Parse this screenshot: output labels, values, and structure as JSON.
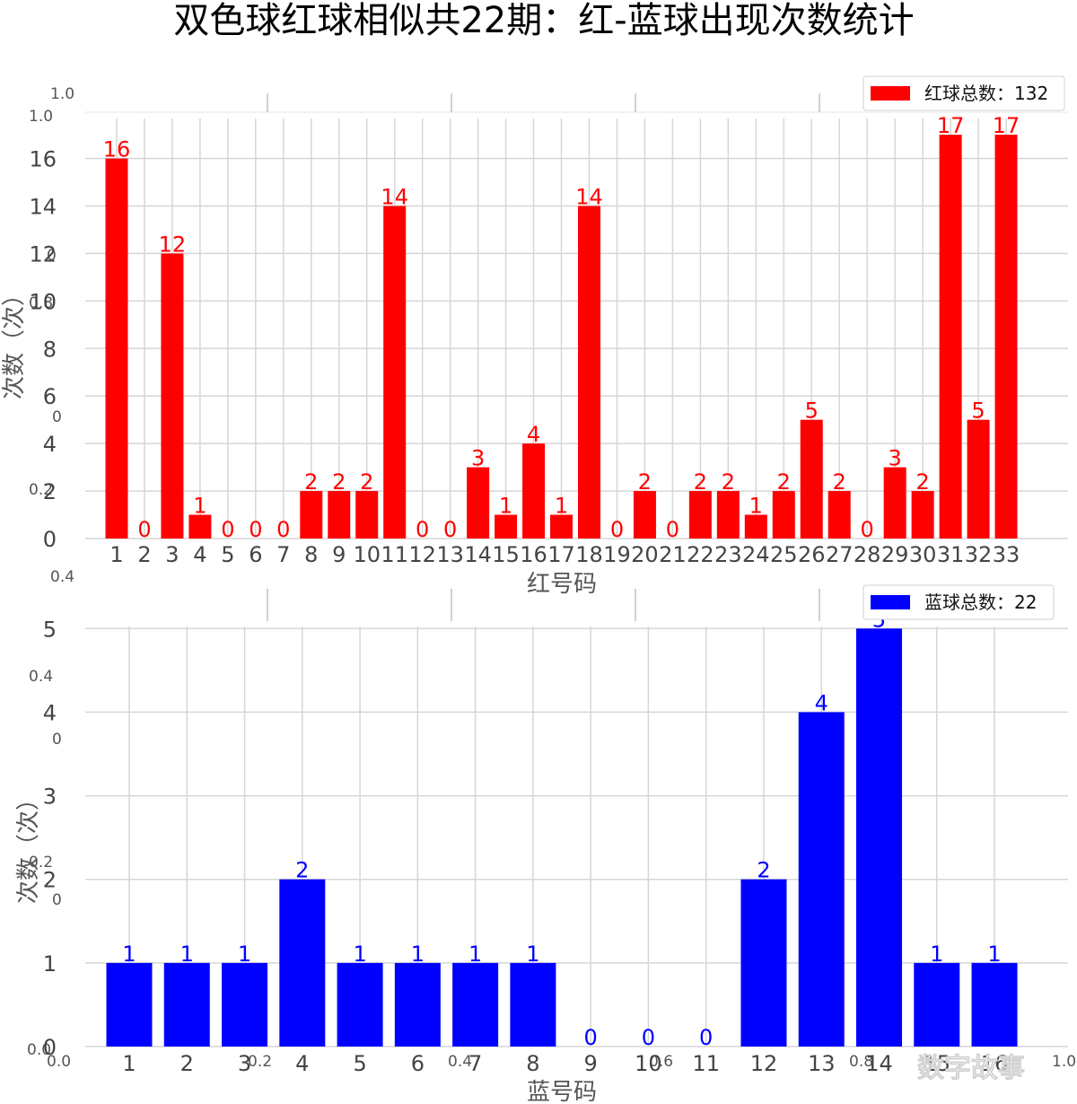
{
  "title": "双色球红球相似共22期：红-蓝球出现次数统计",
  "watermark": "数字故事",
  "ghost_axis": {
    "left_labels": [
      "1.0",
      "1.0",
      "0",
      "0.8",
      "0",
      "0.2",
      "0.4",
      "0.4",
      "0",
      "0.2",
      "0",
      "0.0",
      "0.0"
    ],
    "bottom_labels": [
      "0.2",
      "0.4",
      "0.6",
      "0.8",
      "1.0"
    ]
  },
  "chart_data": [
    {
      "type": "bar",
      "color": "#ff0000",
      "categories": [
        "1",
        "2",
        "3",
        "4",
        "5",
        "6",
        "7",
        "8",
        "9",
        "10",
        "11",
        "12",
        "13",
        "14",
        "15",
        "16",
        "17",
        "18",
        "19",
        "20",
        "21",
        "22",
        "23",
        "24",
        "25",
        "26",
        "27",
        "28",
        "29",
        "30",
        "31",
        "32",
        "33"
      ],
      "values": [
        16,
        0,
        12,
        1,
        0,
        0,
        0,
        2,
        2,
        2,
        14,
        0,
        0,
        3,
        1,
        4,
        1,
        14,
        0,
        2,
        0,
        2,
        2,
        1,
        2,
        5,
        2,
        0,
        3,
        2,
        17,
        5,
        17
      ],
      "yticks": [
        0,
        2,
        4,
        6,
        8,
        10,
        12,
        14,
        16
      ],
      "ylim": [
        0,
        17.85
      ],
      "xlabel": "红号码",
      "ylabel": "次数（次）",
      "legend": "红球总数：132",
      "legend_position": "top-right",
      "grid": true
    },
    {
      "type": "bar",
      "color": "#0000ff",
      "categories": [
        "1",
        "2",
        "3",
        "4",
        "5",
        "6",
        "7",
        "8",
        "9",
        "10",
        "11",
        "12",
        "13",
        "14",
        "15",
        "16"
      ],
      "values": [
        1,
        1,
        1,
        2,
        1,
        1,
        1,
        1,
        0,
        0,
        0,
        2,
        4,
        5,
        1,
        1
      ],
      "yticks": [
        0,
        1,
        2,
        3,
        4,
        5
      ],
      "ylim": [
        0,
        5.25
      ],
      "xlabel": "蓝号码",
      "ylabel": "次数（次）",
      "legend": "蓝球总数：22",
      "legend_position": "top-right",
      "grid": true
    }
  ]
}
